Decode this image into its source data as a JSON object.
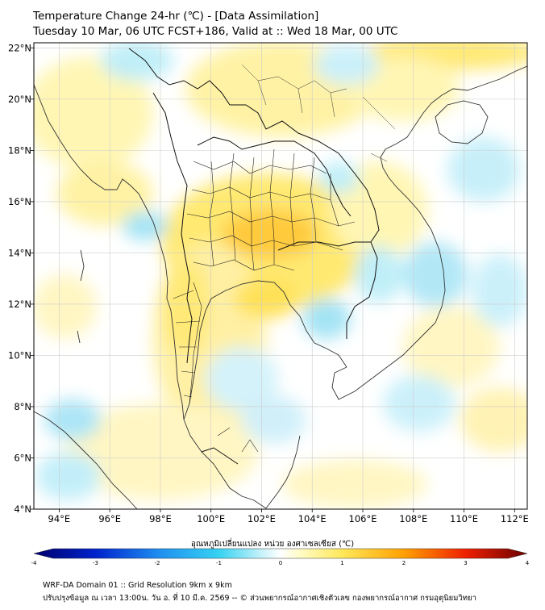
{
  "title_line1": "Temperature Change 24-hr (℃) - [Data Assimilation]",
  "title_line2": "Tuesday 10 Mar, 06 UTC FCST+186, Valid at :: Wed 18 Mar, 00 UTC",
  "map": {
    "lon_range": [
      93,
      112.5
    ],
    "lat_range": [
      4,
      22.2
    ],
    "lon_ticks": [
      {
        "value": 94,
        "label": "94°E"
      },
      {
        "value": 96,
        "label": "96°E"
      },
      {
        "value": 98,
        "label": "98°E"
      },
      {
        "value": 100,
        "label": "100°E"
      },
      {
        "value": 102,
        "label": "102°E"
      },
      {
        "value": 104,
        "label": "104°E"
      },
      {
        "value": 106,
        "label": "106°E"
      },
      {
        "value": 108,
        "label": "108°E"
      },
      {
        "value": 110,
        "label": "110°E"
      },
      {
        "value": 112,
        "label": "112°E"
      }
    ],
    "lat_ticks": [
      {
        "value": 22,
        "label": "22°N"
      },
      {
        "value": 20,
        "label": "20°N"
      },
      {
        "value": 18,
        "label": "18°N"
      },
      {
        "value": 16,
        "label": "16°N"
      },
      {
        "value": 14,
        "label": "14°N"
      },
      {
        "value": 12,
        "label": "12°N"
      },
      {
        "value": 10,
        "label": "10°N"
      },
      {
        "value": 8,
        "label": "8°N"
      },
      {
        "value": 6,
        "label": "6°N"
      },
      {
        "value": 4,
        "label": "4°N"
      }
    ],
    "field_min": -4,
    "field_max": 4,
    "colors": {
      "neutral": "#ffffff",
      "warm_light": "#fff6a8",
      "warm": "#ffe45a",
      "warmer": "#ffc82a",
      "cool_light": "#d2f2fa",
      "cool": "#9fe2f4",
      "coastline": "#333333",
      "border": "#111111",
      "grid": "#cccccc"
    }
  },
  "colorbar": {
    "label": "อุณหภูมิเปลี่ยนแปลง หน่วย องศาเซลเซียส (℃)",
    "min": -4,
    "max": 4,
    "ticks": [
      {
        "value": -4,
        "label": "-4"
      },
      {
        "value": -3,
        "label": "-3"
      },
      {
        "value": -2,
        "label": "-2"
      },
      {
        "value": -1,
        "label": "-1"
      },
      {
        "value": 0,
        "label": "0"
      },
      {
        "value": 1,
        "label": "1"
      },
      {
        "value": 2,
        "label": "2"
      },
      {
        "value": 3,
        "label": "3"
      },
      {
        "value": 4,
        "label": "4"
      }
    ],
    "stops": [
      {
        "value": -4,
        "color": "#00006b"
      },
      {
        "value": -3,
        "color": "#0022cc"
      },
      {
        "value": -2,
        "color": "#1e8cf0"
      },
      {
        "value": -1,
        "color": "#36d2f2"
      },
      {
        "value": -0.3,
        "color": "#c8f2fa"
      },
      {
        "value": 0,
        "color": "#ffffff"
      },
      {
        "value": 0.3,
        "color": "#fffcc8"
      },
      {
        "value": 1,
        "color": "#ffe85a"
      },
      {
        "value": 2,
        "color": "#ffa000"
      },
      {
        "value": 3,
        "color": "#ee2000"
      },
      {
        "value": 4,
        "color": "#6b0000"
      }
    ]
  },
  "footer_line1": "WRF-DA Domain 01 :: Grid Resolution 9km x 9km",
  "footer_line2": "ปรับปรุงข้อมูล ณ เวลา 13:00น. วัน อ. ที่ 10 มี.ค. 2569 -- © ส่วนพยากรณ์อากาศเชิงตัวเลข กองพยากรณ์อากาศ กรมอุตุนิยมวิทยา"
}
